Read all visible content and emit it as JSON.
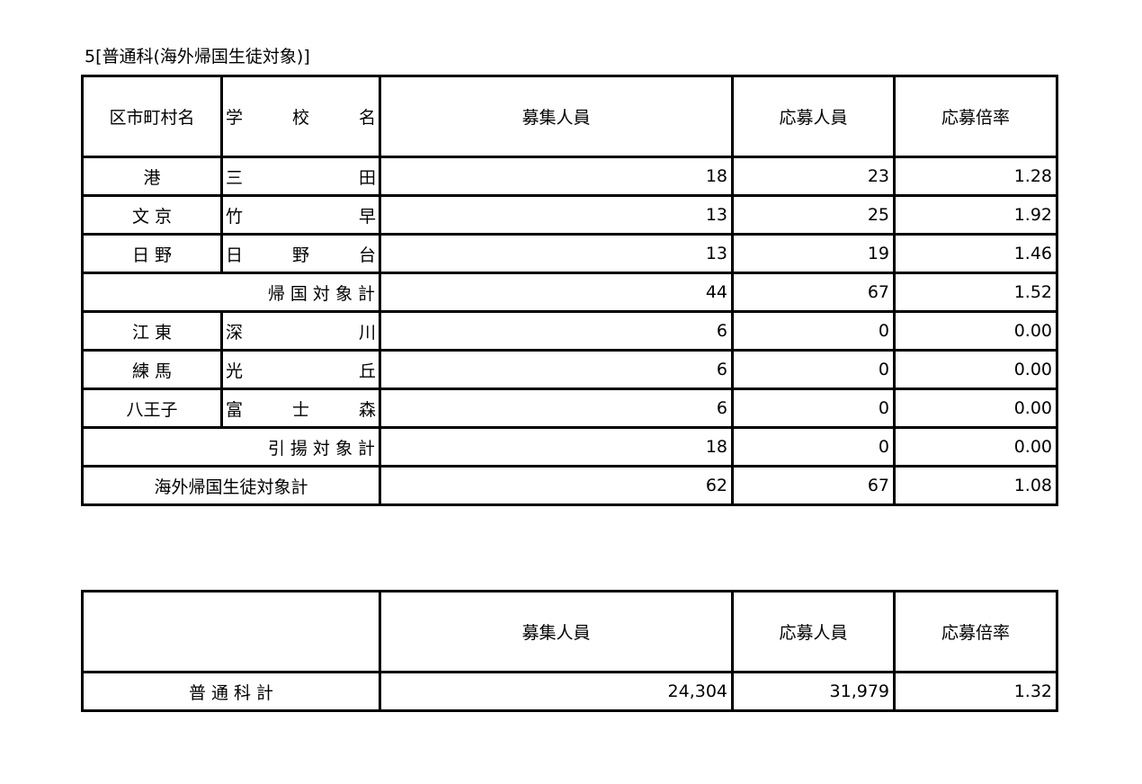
{
  "title": "5[普通科(海外帰国生徒対象)]",
  "table1": {
    "headers": {
      "district": "区市町村名",
      "school": "学 校 名",
      "capacity": "募集人員",
      "applicants": "応募人員",
      "ratio": "応募倍率"
    },
    "rows": [
      {
        "type": "school",
        "district": "港",
        "school": "三 田",
        "capacity": "18",
        "applicants": "23",
        "ratio": "1.28"
      },
      {
        "type": "school",
        "district": "文 京",
        "school": "竹 早",
        "capacity": "13",
        "applicants": "25",
        "ratio": "1.92"
      },
      {
        "type": "school",
        "district": "日 野",
        "school": "日 野 台",
        "capacity": "13",
        "applicants": "19",
        "ratio": "1.46"
      },
      {
        "type": "subtotal",
        "label": "帰 国 対 象 計",
        "capacity": "44",
        "applicants": "67",
        "ratio": "1.52"
      },
      {
        "type": "school",
        "district": "江 東",
        "school": "深 川",
        "capacity": "6",
        "applicants": "0",
        "ratio": "0.00"
      },
      {
        "type": "school",
        "district": "練 馬",
        "school": "光 丘",
        "capacity": "6",
        "applicants": "0",
        "ratio": "0.00"
      },
      {
        "type": "school",
        "district": "八王子",
        "school": "富 士 森",
        "capacity": "6",
        "applicants": "0",
        "ratio": "0.00"
      },
      {
        "type": "subtotal",
        "label": "引 揚 対 象 計",
        "capacity": "18",
        "applicants": "0",
        "ratio": "0.00"
      },
      {
        "type": "total",
        "label": "海外帰国生徒対象計",
        "capacity": "62",
        "applicants": "67",
        "ratio": "1.08"
      }
    ]
  },
  "table2": {
    "headers": {
      "capacity": "募集人員",
      "applicants": "応募人員",
      "ratio": "応募倍率"
    },
    "row": {
      "label": "普 通 科 計",
      "capacity": "24,304",
      "applicants": "31,979",
      "ratio": "1.32"
    }
  }
}
